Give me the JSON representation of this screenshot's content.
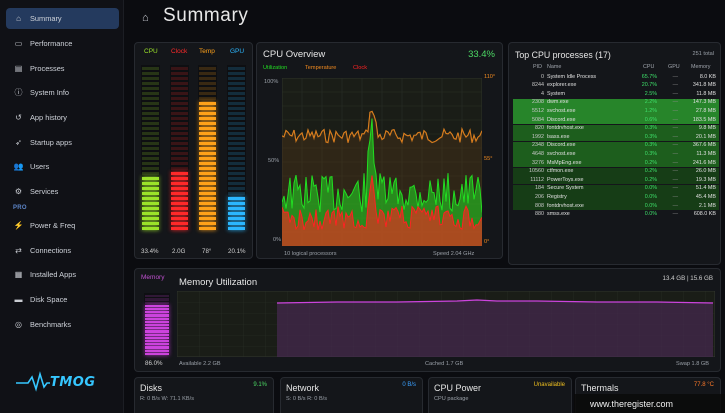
{
  "sidebar": {
    "items": [
      {
        "label": "Summary",
        "icon": "home-icon",
        "active": true
      },
      {
        "label": "Performance",
        "icon": "performance-icon"
      },
      {
        "label": "Processes",
        "icon": "processes-icon"
      },
      {
        "label": "System Info",
        "icon": "system-info-icon"
      },
      {
        "label": "App history",
        "icon": "history-icon"
      },
      {
        "label": "Startup apps",
        "icon": "startup-icon"
      },
      {
        "label": "Users",
        "icon": "users-icon"
      },
      {
        "label": "Services",
        "icon": "services-icon"
      }
    ],
    "pro_label": "PRO",
    "pro_items": [
      {
        "label": "Power & Freq",
        "icon": "power-icon"
      },
      {
        "label": "Connections",
        "icon": "connections-icon"
      },
      {
        "label": "Installed Apps",
        "icon": "installed-apps-icon"
      },
      {
        "label": "Disk Space",
        "icon": "disk-space-icon"
      },
      {
        "label": "Benchmarks",
        "icon": "benchmarks-icon"
      }
    ],
    "logo_text": "TMOG"
  },
  "header": {
    "title": "Summary"
  },
  "bars": {
    "colors": {
      "cpu": "#9be22a",
      "clock": "#ff2a2a",
      "temp": "#ffa21a",
      "gpu": "#2cb7ff"
    },
    "items": [
      {
        "key": "cpu",
        "label": "CPU",
        "value_text": "33.4%",
        "fraction": 0.334
      },
      {
        "key": "clock",
        "label": "Clock",
        "value_text": "2.0G",
        "fraction": 0.35
      },
      {
        "key": "temp",
        "label": "Temp",
        "value_text": "78°",
        "fraction": 0.78
      },
      {
        "key": "gpu",
        "label": "GPU",
        "value_text": "20.1%",
        "fraction": 0.201
      }
    ]
  },
  "cpu_overview": {
    "title": "CPU Overview",
    "percent": "33.4%",
    "legend": {
      "utilization": "Utilization",
      "temperature": "Temperature",
      "clock": "Clock"
    },
    "colors": {
      "utilization": "#22dd22",
      "temperature": "#f08a20",
      "clock": "#ff2222"
    },
    "left_axis": [
      "100%",
      "50%",
      "0%"
    ],
    "right_axis": [
      "110°",
      "55°",
      "0°"
    ],
    "footer_left": "10 logical processors",
    "footer_right": "Speed 2.04 GHz"
  },
  "top_processes": {
    "title": "Top CPU processes (17)",
    "total": "251 total",
    "headers": {
      "pid": "PID",
      "name": "Name",
      "cpu": "CPU",
      "gpu": "GPU",
      "memory": "Memory"
    },
    "rows": [
      {
        "pid": "0",
        "name": "System Idle Process",
        "cpu": "65.7%",
        "gpu": "—",
        "memory": "8.0 KB",
        "level": 0
      },
      {
        "pid": "8244",
        "name": "explorer.exe",
        "cpu": "20.7%",
        "gpu": "—",
        "memory": "341.8 MB",
        "level": 0
      },
      {
        "pid": "4",
        "name": "System",
        "cpu": "2.5%",
        "gpu": "—",
        "memory": "11.8 MB",
        "level": 0
      },
      {
        "pid": "2308",
        "name": "dwm.exe",
        "cpu": "2.2%",
        "gpu": "—",
        "memory": "147.3 MB",
        "level": 3
      },
      {
        "pid": "5512",
        "name": "svchost.exe",
        "cpu": "1.2%",
        "gpu": "—",
        "memory": "27.8 MB",
        "level": 3
      },
      {
        "pid": "5084",
        "name": "Discord.exe",
        "cpu": "0.6%",
        "gpu": "—",
        "memory": "183.5 MB",
        "level": 3
      },
      {
        "pid": "820",
        "name": "fontdrvhost.exe",
        "cpu": "0.3%",
        "gpu": "—",
        "memory": "9.8 MB",
        "level": 2
      },
      {
        "pid": "1992",
        "name": "lsass.exe",
        "cpu": "0.3%",
        "gpu": "—",
        "memory": "20.1 MB",
        "level": 2
      },
      {
        "pid": "2348",
        "name": "Discord.exe",
        "cpu": "0.3%",
        "gpu": "—",
        "memory": "367.6 MB",
        "level": 2
      },
      {
        "pid": "4648",
        "name": "svchost.exe",
        "cpu": "0.3%",
        "gpu": "—",
        "memory": "11.3 MB",
        "level": 2
      },
      {
        "pid": "3276",
        "name": "MsMpEng.exe",
        "cpu": "0.2%",
        "gpu": "—",
        "memory": "241.6 MB",
        "level": 2
      },
      {
        "pid": "10560",
        "name": "ctfmon.exe",
        "cpu": "0.2%",
        "gpu": "—",
        "memory": "26.0 MB",
        "level": 1
      },
      {
        "pid": "11112",
        "name": "PowerToys.exe",
        "cpu": "0.2%",
        "gpu": "—",
        "memory": "19.3 MB",
        "level": 1
      },
      {
        "pid": "184",
        "name": "Secure System",
        "cpu": "0.0%",
        "gpu": "—",
        "memory": "51.4 MB",
        "level": 1
      },
      {
        "pid": "206",
        "name": "Registry",
        "cpu": "0.0%",
        "gpu": "—",
        "memory": "45.4 MB",
        "level": 1
      },
      {
        "pid": "808",
        "name": "fontdrvhost.exe",
        "cpu": "0.0%",
        "gpu": "—",
        "memory": "2.1 MB",
        "level": 1
      },
      {
        "pid": "880",
        "name": "smss.exe",
        "cpu": "0.0%",
        "gpu": "—",
        "memory": "608.0 KB",
        "level": 0
      }
    ]
  },
  "memory": {
    "label": "Memory",
    "title": "Memory Utilization",
    "total": "13.4 GB | 15.6 GB",
    "percent": "86.0%",
    "fraction": 0.86,
    "color": "#cc44dd",
    "available": "Available 2.2 GB",
    "cached": "Cached 1.7 GB",
    "swap": "Swap 1.8 GB"
  },
  "disks": {
    "title": "Disks",
    "value": "9.1%",
    "sub": "R: 0 B/s   W: 71.1 KB/s",
    "color": "#4cd964"
  },
  "network": {
    "title": "Network",
    "value": "0 B/s",
    "sub": "S: 0 B/s   R: 0 B/s",
    "color": "#3aa0ff"
  },
  "cpu_power": {
    "title": "CPU Power",
    "value": "Unavailable",
    "sub": "CPU package",
    "color": "#f0c020"
  },
  "thermals": {
    "title": "Thermals",
    "value": "77.8 °C",
    "color": "#ff7a2a"
  },
  "watermark": {
    "text": "www.theregister.com"
  }
}
